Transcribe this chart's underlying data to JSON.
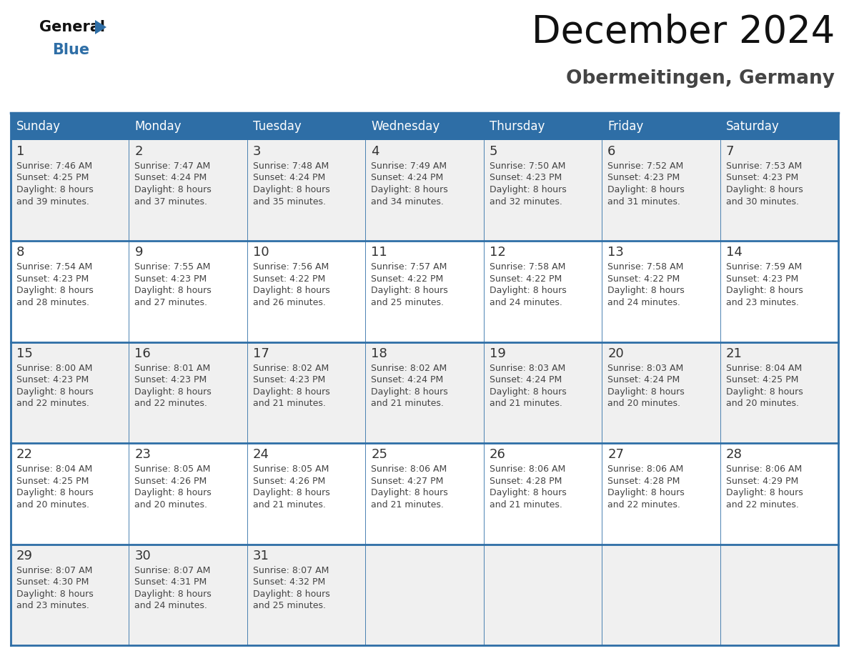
{
  "title": "December 2024",
  "subtitle": "Obermeitingen, Germany",
  "days_of_week": [
    "Sunday",
    "Monday",
    "Tuesday",
    "Wednesday",
    "Thursday",
    "Friday",
    "Saturday"
  ],
  "header_bg": "#2E6EA6",
  "header_text": "#FFFFFF",
  "cell_bg_odd": "#F0F0F0",
  "cell_bg_even": "#FFFFFF",
  "day_number_color": "#333333",
  "text_color": "#444444",
  "grid_color": "#2E6EA6",
  "title_color": "#111111",
  "subtitle_color": "#444444",
  "logo_general_color": "#111111",
  "logo_blue_color": "#2E6EA6",
  "weeks": [
    [
      {
        "day": 1,
        "sunrise": "7:46 AM",
        "sunset": "4:25 PM",
        "daylight": "8 hours and 39 minutes"
      },
      {
        "day": 2,
        "sunrise": "7:47 AM",
        "sunset": "4:24 PM",
        "daylight": "8 hours and 37 minutes"
      },
      {
        "day": 3,
        "sunrise": "7:48 AM",
        "sunset": "4:24 PM",
        "daylight": "8 hours and 35 minutes"
      },
      {
        "day": 4,
        "sunrise": "7:49 AM",
        "sunset": "4:24 PM",
        "daylight": "8 hours and 34 minutes"
      },
      {
        "day": 5,
        "sunrise": "7:50 AM",
        "sunset": "4:23 PM",
        "daylight": "8 hours and 32 minutes"
      },
      {
        "day": 6,
        "sunrise": "7:52 AM",
        "sunset": "4:23 PM",
        "daylight": "8 hours and 31 minutes"
      },
      {
        "day": 7,
        "sunrise": "7:53 AM",
        "sunset": "4:23 PM",
        "daylight": "8 hours and 30 minutes"
      }
    ],
    [
      {
        "day": 8,
        "sunrise": "7:54 AM",
        "sunset": "4:23 PM",
        "daylight": "8 hours and 28 minutes"
      },
      {
        "day": 9,
        "sunrise": "7:55 AM",
        "sunset": "4:23 PM",
        "daylight": "8 hours and 27 minutes"
      },
      {
        "day": 10,
        "sunrise": "7:56 AM",
        "sunset": "4:22 PM",
        "daylight": "8 hours and 26 minutes"
      },
      {
        "day": 11,
        "sunrise": "7:57 AM",
        "sunset": "4:22 PM",
        "daylight": "8 hours and 25 minutes"
      },
      {
        "day": 12,
        "sunrise": "7:58 AM",
        "sunset": "4:22 PM",
        "daylight": "8 hours and 24 minutes"
      },
      {
        "day": 13,
        "sunrise": "7:58 AM",
        "sunset": "4:22 PM",
        "daylight": "8 hours and 24 minutes"
      },
      {
        "day": 14,
        "sunrise": "7:59 AM",
        "sunset": "4:23 PM",
        "daylight": "8 hours and 23 minutes"
      }
    ],
    [
      {
        "day": 15,
        "sunrise": "8:00 AM",
        "sunset": "4:23 PM",
        "daylight": "8 hours and 22 minutes"
      },
      {
        "day": 16,
        "sunrise": "8:01 AM",
        "sunset": "4:23 PM",
        "daylight": "8 hours and 22 minutes"
      },
      {
        "day": 17,
        "sunrise": "8:02 AM",
        "sunset": "4:23 PM",
        "daylight": "8 hours and 21 minutes"
      },
      {
        "day": 18,
        "sunrise": "8:02 AM",
        "sunset": "4:24 PM",
        "daylight": "8 hours and 21 minutes"
      },
      {
        "day": 19,
        "sunrise": "8:03 AM",
        "sunset": "4:24 PM",
        "daylight": "8 hours and 21 minutes"
      },
      {
        "day": 20,
        "sunrise": "8:03 AM",
        "sunset": "4:24 PM",
        "daylight": "8 hours and 20 minutes"
      },
      {
        "day": 21,
        "sunrise": "8:04 AM",
        "sunset": "4:25 PM",
        "daylight": "8 hours and 20 minutes"
      }
    ],
    [
      {
        "day": 22,
        "sunrise": "8:04 AM",
        "sunset": "4:25 PM",
        "daylight": "8 hours and 20 minutes"
      },
      {
        "day": 23,
        "sunrise": "8:05 AM",
        "sunset": "4:26 PM",
        "daylight": "8 hours and 20 minutes"
      },
      {
        "day": 24,
        "sunrise": "8:05 AM",
        "sunset": "4:26 PM",
        "daylight": "8 hours and 21 minutes"
      },
      {
        "day": 25,
        "sunrise": "8:06 AM",
        "sunset": "4:27 PM",
        "daylight": "8 hours and 21 minutes"
      },
      {
        "day": 26,
        "sunrise": "8:06 AM",
        "sunset": "4:28 PM",
        "daylight": "8 hours and 21 minutes"
      },
      {
        "day": 27,
        "sunrise": "8:06 AM",
        "sunset": "4:28 PM",
        "daylight": "8 hours and 22 minutes"
      },
      {
        "day": 28,
        "sunrise": "8:06 AM",
        "sunset": "4:29 PM",
        "daylight": "8 hours and 22 minutes"
      }
    ],
    [
      {
        "day": 29,
        "sunrise": "8:07 AM",
        "sunset": "4:30 PM",
        "daylight": "8 hours and 23 minutes"
      },
      {
        "day": 30,
        "sunrise": "8:07 AM",
        "sunset": "4:31 PM",
        "daylight": "8 hours and 24 minutes"
      },
      {
        "day": 31,
        "sunrise": "8:07 AM",
        "sunset": "4:32 PM",
        "daylight": "8 hours and 25 minutes"
      },
      null,
      null,
      null,
      null
    ]
  ]
}
